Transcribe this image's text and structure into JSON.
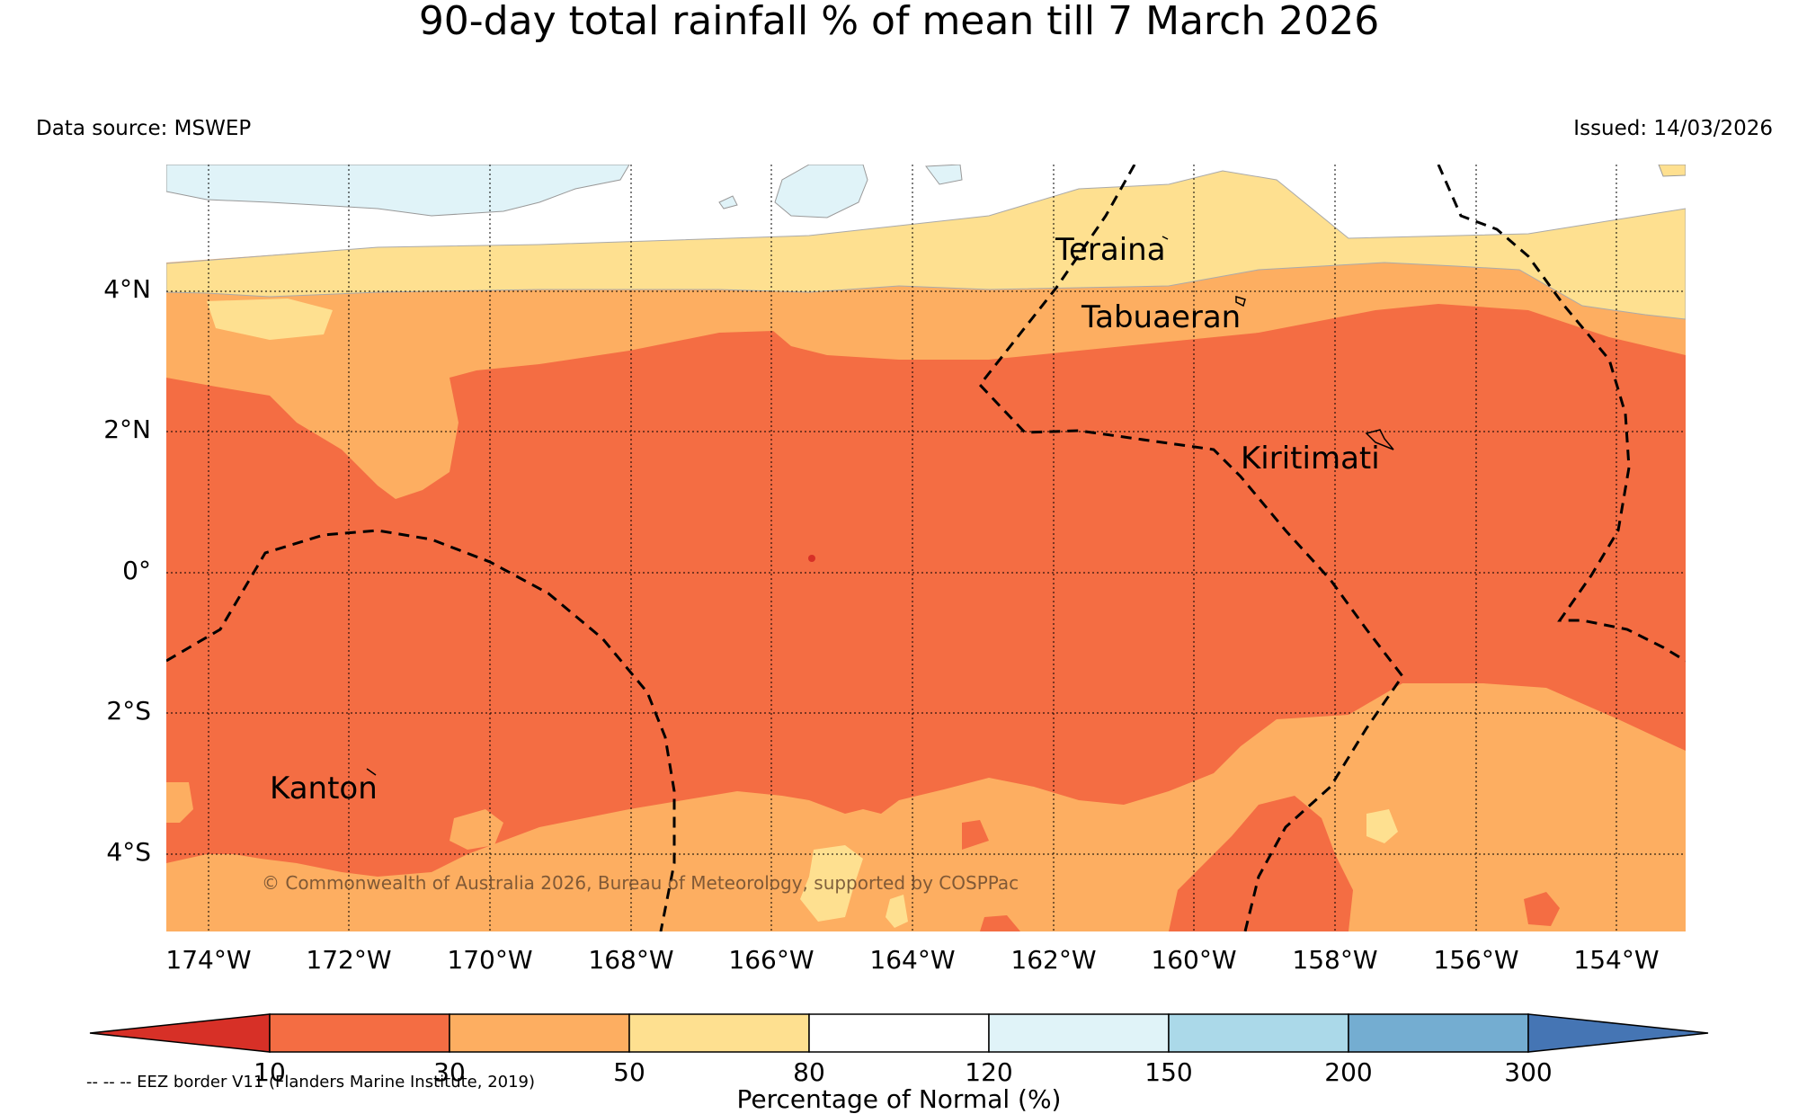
{
  "title": "90-day total rainfall % of mean till 7 March 2026",
  "data_source": "Data source: MSWEP",
  "issued": "Issued: 14/03/2026",
  "copyright": "© Commonwealth of Australia 2026, Bureau of Meteorology, supported by COSPPac",
  "map": {
    "lat_labels": [
      "4°N",
      "2°N",
      "0°",
      "2°S",
      "4°S"
    ],
    "lon_labels": [
      "174°W",
      "172°W",
      "170°W",
      "168°W",
      "166°W",
      "164°W",
      "162°W",
      "160°W",
      "158°W",
      "156°W",
      "154°W"
    ],
    "places": [
      "Teraina",
      "Tabuaeran",
      "Kiritimati",
      "Kanton"
    ]
  },
  "colorbar": {
    "ticks": [
      "10",
      "30",
      "50",
      "80",
      "120",
      "150",
      "200",
      "300"
    ],
    "label": "Percentage of Normal (%)",
    "colors": {
      "under": "#d73027",
      "c10_30": "#f46d43",
      "c30_50": "#fdae61",
      "c50_80": "#fee090",
      "c80_120": "#ffffff",
      "c120_150": "#e0f3f8",
      "c150_200": "#abd9e9",
      "c200_300": "#74add1",
      "over": "#4575b4"
    }
  },
  "legend_eez": "-- -- -- EEZ border V11 (Flanders Marine Institute, 2019)"
}
